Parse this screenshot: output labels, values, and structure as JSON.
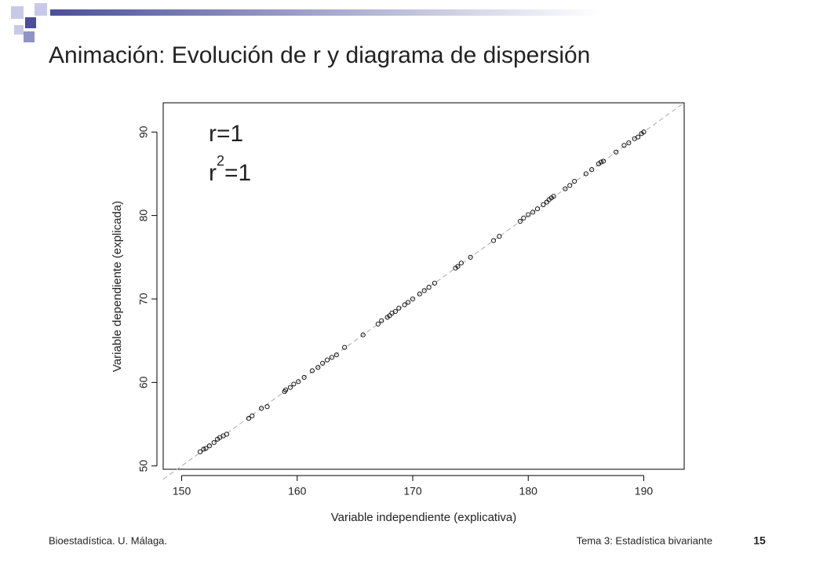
{
  "slide": {
    "title": "Animación: Evolución de r y diagrama de dispersión",
    "footer_left": "Bioestadística. U. Málaga.",
    "footer_right": "Tema 3: Estadística bivariante",
    "page_number": "15"
  },
  "chart_data": {
    "type": "scatter",
    "x_label": "Variable independiente (explicativa)",
    "y_label": "Variable dependiente (explicada)",
    "annotation_r": "r=1",
    "annotation_r2": {
      "base": "r",
      "sup": "2",
      "rest": "=1"
    },
    "color": "#000000",
    "xlim": [
      148.4,
      193.5
    ],
    "ylim": [
      49.6,
      93.5
    ],
    "xticks": [
      150,
      160,
      170,
      180,
      190
    ],
    "yticks": [
      50,
      60,
      70,
      80,
      90
    ],
    "reference_line": {
      "x": [
        148.4,
        193.5
      ],
      "y": [
        48.4,
        93.5
      ]
    },
    "x": [
      151.6,
      151.9,
      152.1,
      152.4,
      152.8,
      153.1,
      153.3,
      153.6,
      153.9,
      155.8,
      156.1,
      156.9,
      157.4,
      158.9,
      159.0,
      159.4,
      159.7,
      160.1,
      160.6,
      161.3,
      161.8,
      162.2,
      162.6,
      163.0,
      163.4,
      164.1,
      165.7,
      167.0,
      167.3,
      167.8,
      168.0,
      168.2,
      168.5,
      168.8,
      169.3,
      169.6,
      170.0,
      170.6,
      171.0,
      171.4,
      171.9,
      173.7,
      173.9,
      174.2,
      175.0,
      177.0,
      177.5,
      179.3,
      179.6,
      180.0,
      180.4,
      180.8,
      181.3,
      181.6,
      181.8,
      182.0,
      182.2,
      183.2,
      183.6,
      184.0,
      185.0,
      185.5,
      186.1,
      186.3,
      186.5,
      187.6,
      188.3,
      188.7,
      189.2,
      189.5,
      189.8,
      190.0
    ],
    "y": [
      51.7,
      52.0,
      52.1,
      52.4,
      52.8,
      53.2,
      53.4,
      53.6,
      53.8,
      55.7,
      56.0,
      56.9,
      57.1,
      58.9,
      59.1,
      59.4,
      59.8,
      60.1,
      60.6,
      61.4,
      61.8,
      62.3,
      62.7,
      63.0,
      63.3,
      64.2,
      65.7,
      67.0,
      67.4,
      67.8,
      68.0,
      68.3,
      68.5,
      68.9,
      69.3,
      69.6,
      70.0,
      70.6,
      71.0,
      71.4,
      71.9,
      73.7,
      73.9,
      74.3,
      75.0,
      77.0,
      77.5,
      79.3,
      79.7,
      80.1,
      80.4,
      80.8,
      81.3,
      81.6,
      81.9,
      82.1,
      82.3,
      83.2,
      83.6,
      84.1,
      85.0,
      85.5,
      86.2,
      86.4,
      86.5,
      87.6,
      88.4,
      88.7,
      89.2,
      89.4,
      89.8,
      90.0
    ]
  }
}
